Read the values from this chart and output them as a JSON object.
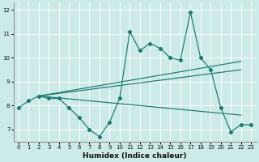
{
  "xlabel": "Humidex (Indice chaleur)",
  "bg_color": "#cceae8",
  "grid_color": "#ffffff",
  "line_color": "#1a7a6e",
  "xlim": [
    -0.5,
    23.5
  ],
  "ylim": [
    6.5,
    12.3
  ],
  "xticks": [
    0,
    1,
    2,
    3,
    4,
    5,
    6,
    7,
    8,
    9,
    10,
    11,
    12,
    13,
    14,
    15,
    16,
    17,
    18,
    19,
    20,
    21,
    22,
    23
  ],
  "yticks": [
    7,
    8,
    9,
    10,
    11,
    12
  ],
  "data_x": [
    0,
    1,
    2,
    3,
    4,
    5,
    6,
    7,
    8,
    9,
    10,
    11,
    12,
    13,
    14,
    15,
    16,
    17,
    18,
    19,
    20,
    21,
    22,
    23
  ],
  "data_y": [
    7.9,
    8.2,
    8.4,
    8.3,
    8.3,
    7.9,
    7.5,
    7.0,
    6.7,
    7.3,
    8.3,
    11.1,
    10.3,
    10.6,
    10.4,
    10.0,
    9.9,
    11.9,
    10.0,
    9.5,
    7.9,
    6.9,
    7.2,
    7.2
  ],
  "ref_lines": [
    {
      "x": [
        2,
        22
      ],
      "y": [
        8.4,
        9.5
      ]
    },
    {
      "x": [
        2,
        22
      ],
      "y": [
        8.4,
        9.85
      ]
    },
    {
      "x": [
        2,
        22
      ],
      "y": [
        8.4,
        7.6
      ]
    }
  ]
}
